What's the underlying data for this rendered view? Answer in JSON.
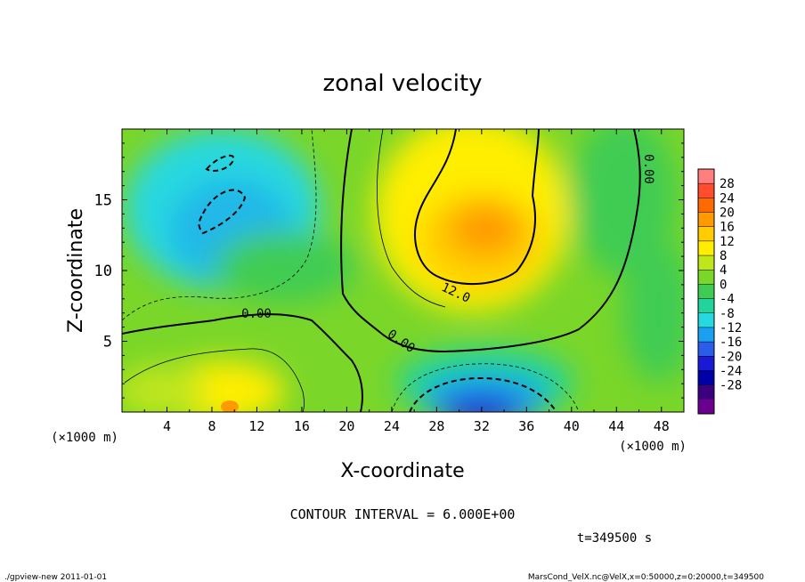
{
  "chart_data": {
    "type": "heatmap",
    "title": "zonal velocity",
    "xlabel": "X-coordinate",
    "ylabel": "Z-coordinate",
    "x_unit": "(×1000 m)",
    "xlim": [
      0,
      50
    ],
    "ylim": [
      0,
      20
    ],
    "x_ticks": [
      "4",
      "8",
      "12",
      "16",
      "20",
      "24",
      "28",
      "32",
      "36",
      "40",
      "44",
      "48"
    ],
    "y_ticks": [
      "5",
      "10",
      "15"
    ],
    "x_tick_values": [
      4,
      8,
      12,
      16,
      20,
      24,
      28,
      32,
      36,
      40,
      44,
      48
    ],
    "y_tick_values": [
      5,
      10,
      15
    ],
    "colorbar_labels": [
      "28",
      "24",
      "20",
      "16",
      "12",
      "8",
      "4",
      "0",
      "-4",
      "-8",
      "-12",
      "-16",
      "-20",
      "-24",
      "-28"
    ],
    "colorbar_colors": [
      "#ff7f7f",
      "#ff4d2e",
      "#ff6a00",
      "#ff9a00",
      "#ffcc00",
      "#ffee00",
      "#bfe61a",
      "#7ad629",
      "#3fcc52",
      "#20d49b",
      "#27d8e0",
      "#1aa0f0",
      "#2a5ee8",
      "#1a1ad6",
      "#0000a8",
      "#3a0080",
      "#6a0090"
    ],
    "contour_labels": [
      "0.00",
      "0.00",
      "0.00",
      "12.0"
    ],
    "contour_interval": "CONTOUR INTERVAL = 6.000E+00",
    "time_label": "t=349500  s",
    "footer_left": "./gpview-new   2011-01-01",
    "footer_right": "MarsCond_VelX.nc@VelX,x=0:50000,z=0:20000,t=349500",
    "field_features": [
      {
        "region": "upper-left jet core",
        "x": 8,
        "z": 15,
        "value": -10
      },
      {
        "region": "upper-middle maximum",
        "x": 31,
        "z": 12.5,
        "value": 14
      },
      {
        "region": "lower-middle minimum",
        "x": 32,
        "z": 1,
        "value": -24
      },
      {
        "region": "lower-left maximum",
        "x": 9,
        "z": 1,
        "value": 12
      }
    ]
  }
}
